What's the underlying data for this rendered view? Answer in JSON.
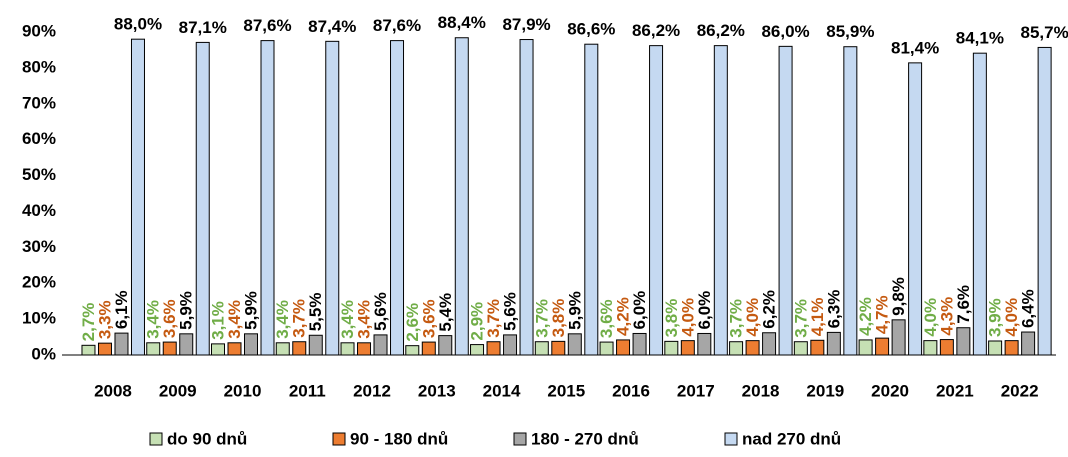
{
  "chart_data": {
    "type": "bar",
    "categories": [
      "2008",
      "2009",
      "2010",
      "2011",
      "2012",
      "2013",
      "2014",
      "2015",
      "2016",
      "2017",
      "2018",
      "2019",
      "2020",
      "2021",
      "2022"
    ],
    "series": [
      {
        "name": "do 90 dnů",
        "color": "#c6e0b4",
        "label_color": "#70ad47",
        "values": [
          2.7,
          3.4,
          3.1,
          3.4,
          3.4,
          2.6,
          2.9,
          3.7,
          3.6,
          3.8,
          3.7,
          3.7,
          4.2,
          4.0,
          3.9
        ],
        "value_labels": [
          "2,7%",
          "3,4%",
          "3,1%",
          "3,4%",
          "3,4%",
          "2,6%",
          "2,9%",
          "3,7%",
          "3,6%",
          "3,8%",
          "3,7%",
          "3,7%",
          "4,2%",
          "4,0%",
          "3,9%"
        ]
      },
      {
        "name": "90 - 180 dnů",
        "color": "#ed7d31",
        "label_color": "#c55a11",
        "values": [
          3.3,
          3.6,
          3.4,
          3.7,
          3.4,
          3.6,
          3.7,
          3.8,
          4.2,
          4.0,
          4.0,
          4.1,
          4.7,
          4.3,
          4.0
        ],
        "value_labels": [
          "3,3%",
          "3,6%",
          "3,4%",
          "3,7%",
          "3,4%",
          "3,6%",
          "3,7%",
          "3,8%",
          "4,2%",
          "4,0%",
          "4,0%",
          "4,1%",
          "4,7%",
          "4,3%",
          "4,0%"
        ]
      },
      {
        "name": "180 - 270 dnů",
        "color": "#a6a6a6",
        "label_color": "#000000",
        "values": [
          6.1,
          5.9,
          5.9,
          5.5,
          5.6,
          5.4,
          5.6,
          5.9,
          6.0,
          6.0,
          6.2,
          6.3,
          9.8,
          7.6,
          6.4
        ],
        "value_labels": [
          "6,1%",
          "5,9%",
          "5,9%",
          "5,5%",
          "5,6%",
          "5,4%",
          "5,6%",
          "5,9%",
          "6,0%",
          "6,0%",
          "6,2%",
          "6,3%",
          "9,8%",
          "7,6%",
          "6,4%"
        ]
      },
      {
        "name": "nad 270 dnů",
        "color": "#c5d9f1",
        "label_color": "#000000",
        "values": [
          88.0,
          87.1,
          87.6,
          87.4,
          87.6,
          88.4,
          87.9,
          86.6,
          86.2,
          86.2,
          86.0,
          85.9,
          81.4,
          84.1,
          85.7
        ],
        "value_labels": [
          "88,0%",
          "87,1%",
          "87,6%",
          "87,4%",
          "87,6%",
          "88,4%",
          "87,9%",
          "86,6%",
          "86,2%",
          "86,2%",
          "86,0%",
          "85,9%",
          "81,4%",
          "84,1%",
          "85,7%"
        ]
      }
    ],
    "ylim": [
      0,
      90
    ],
    "yticks": [
      {
        "value": 0,
        "label": "0%"
      },
      {
        "value": 10,
        "label": "10%"
      },
      {
        "value": 20,
        "label": "20%"
      },
      {
        "value": 30,
        "label": "30%"
      },
      {
        "value": 40,
        "label": "40%"
      },
      {
        "value": 50,
        "label": "50%"
      },
      {
        "value": 60,
        "label": "60%"
      },
      {
        "value": 70,
        "label": "70%"
      },
      {
        "value": 80,
        "label": "80%"
      },
      {
        "value": 90,
        "label": "90%"
      }
    ],
    "legend": "bottom"
  }
}
